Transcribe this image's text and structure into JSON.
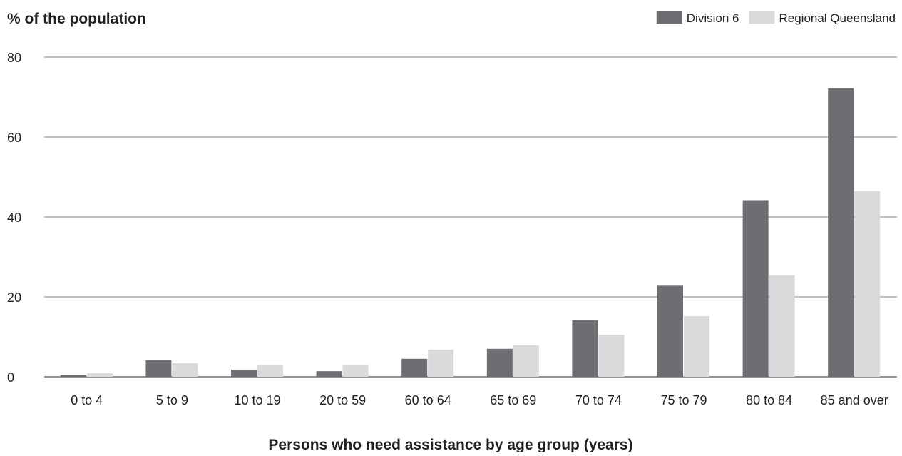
{
  "chart_data": {
    "type": "bar",
    "ylabel": "% of the population",
    "xlabel": "Persons who need assistance by age group (years)",
    "categories": [
      "0 to 4",
      "5 to 9",
      "10 to 19",
      "20 to 59",
      "60 to 64",
      "65 to 69",
      "70 to 74",
      "75 to 79",
      "80 to 84",
      "85 and over"
    ],
    "series": [
      {
        "name": "Division 6",
        "color": "#6d6e71",
        "values": [
          0.4,
          4.1,
          1.8,
          1.4,
          4.5,
          7.0,
          14.1,
          22.8,
          44.2,
          72.2
        ]
      },
      {
        "name": "Regional Queensland",
        "color": "#d9dadb",
        "values": [
          0.9,
          3.4,
          3.0,
          2.9,
          6.8,
          7.9,
          10.5,
          15.2,
          25.4,
          46.5
        ]
      }
    ],
    "ylim": [
      0,
      80
    ],
    "yticks": [
      0,
      20,
      40,
      60,
      80
    ],
    "grid": true,
    "legend_position": "top-right"
  }
}
